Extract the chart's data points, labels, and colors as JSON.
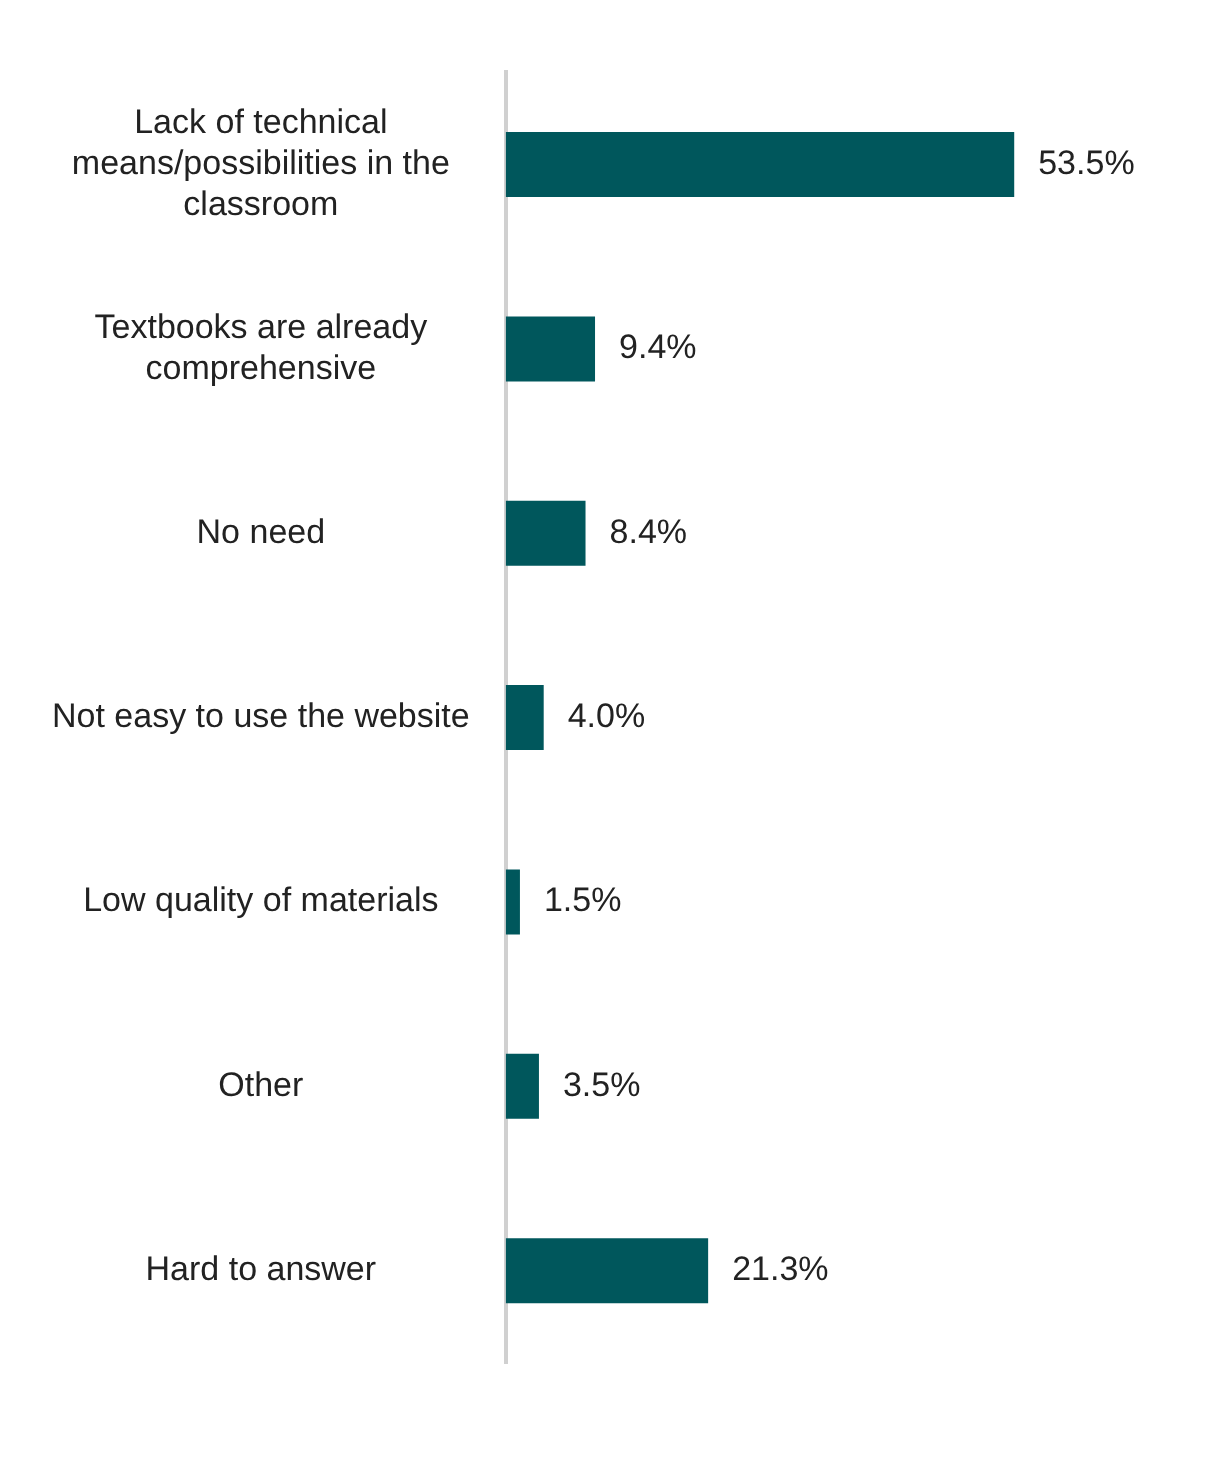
{
  "chart_data": {
    "type": "bar",
    "orientation": "horizontal",
    "categories": [
      "Lack of technical means/possibilities in the classroom",
      "Textbooks are already comprehensive",
      "No need",
      "Not easy to use the website",
      "Low quality of materials",
      "Other",
      "Hard to answer"
    ],
    "values": [
      53.5,
      9.4,
      8.4,
      4.0,
      1.5,
      3.5,
      21.3
    ],
    "value_labels": [
      "53.5%",
      "9.4%",
      "8.4%",
      "4.0%",
      "1.5%",
      "3.5%",
      "21.3%"
    ],
    "color": "#00575c"
  }
}
